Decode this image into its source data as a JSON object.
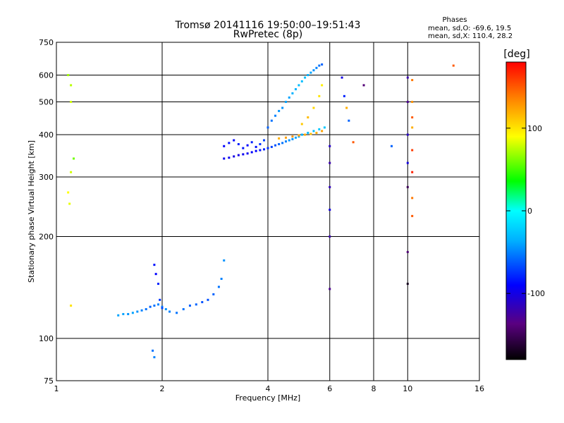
{
  "chart_data": {
    "type": "scatter",
    "title": "Tromsø 20141116 19:50:00–19:51:43",
    "subtitle": "RwPretec (8p)",
    "xlabel": "Frequency [MHz]",
    "ylabel": "Stationary phase Virtual Height [km]",
    "x_scale": "log",
    "y_scale": "log",
    "xlim": [
      1,
      16
    ],
    "ylim": [
      75,
      750
    ],
    "x_ticks": [
      1,
      2,
      4,
      6,
      8,
      10,
      16
    ],
    "y_ticks": [
      75,
      100,
      200,
      300,
      400,
      500,
      600,
      750
    ],
    "grid": true,
    "phase_info": {
      "title": "Phases",
      "line1": "mean, sd,O: -69.6, 19.5",
      "line2": "mean, sd,X: 110.4, 28.2"
    },
    "colorbar": {
      "label": "[deg]",
      "range": [
        -180,
        180
      ],
      "ticks": [
        100,
        0,
        -100
      ],
      "colormap": [
        "#000000",
        "#5a0080",
        "#0000ff",
        "#00b0ff",
        "#00ffff",
        "#00ff00",
        "#ffff00",
        "#ff8000",
        "#ff0000"
      ]
    },
    "series": [
      {
        "x": [
          3.0,
          3.1,
          3.2,
          3.3,
          3.4,
          3.5,
          3.6,
          3.7,
          3.8,
          3.9,
          4.0,
          4.1,
          4.2,
          4.3,
          4.4,
          4.5,
          4.6,
          4.7,
          4.8,
          4.9,
          5.0,
          5.2,
          5.4,
          5.6,
          5.8
        ],
        "y": [
          340,
          342,
          345,
          348,
          350,
          352,
          355,
          358,
          360,
          362,
          365,
          368,
          372,
          375,
          378,
          382,
          385,
          388,
          392,
          395,
          400,
          405,
          410,
          415,
          420
        ],
        "phase": [
          -95,
          -95,
          -100,
          -100,
          -95,
          -95,
          -90,
          -90,
          -85,
          -80,
          -75,
          -70,
          -65,
          -60,
          -55,
          -50,
          -45,
          -45,
          -40,
          -40,
          -35,
          -30,
          -30,
          -25,
          -25
        ]
      },
      {
        "x": [
          3.0,
          3.1,
          3.2,
          3.3,
          3.4,
          3.5,
          3.6,
          3.7,
          3.8,
          3.9
        ],
        "y": [
          370,
          378,
          385,
          375,
          365,
          372,
          380,
          368,
          375,
          385
        ],
        "phase": [
          -90,
          -85,
          -90,
          -80,
          -85,
          -90,
          -80,
          -85,
          -75,
          -70
        ]
      },
      {
        "x": [
          4.0,
          4.1,
          4.2,
          4.3,
          4.4,
          4.5,
          4.6,
          4.7,
          4.8,
          4.9,
          5.0,
          5.1,
          5.2,
          5.3,
          5.4,
          5.5,
          5.6,
          5.7
        ],
        "y": [
          420,
          440,
          455,
          470,
          480,
          500,
          515,
          530,
          545,
          560,
          575,
          590,
          600,
          610,
          620,
          630,
          640,
          645
        ],
        "phase": [
          -60,
          -55,
          -50,
          -45,
          -45,
          -40,
          -40,
          -35,
          -35,
          -30,
          -30,
          -30,
          -35,
          -40,
          -45,
          -50,
          -55,
          -60
        ]
      },
      {
        "x": [
          4.3,
          4.5,
          4.7,
          4.9,
          5.1,
          5.3,
          5.5,
          5.7
        ],
        "y": [
          390,
          392,
          395,
          398,
          400,
          402,
          405,
          410
        ],
        "phase": [
          120,
          125,
          130,
          125,
          120,
          115,
          120,
          125
        ]
      },
      {
        "x": [
          5.0,
          5.2,
          5.4,
          5.6,
          5.7
        ],
        "y": [
          430,
          450,
          480,
          520,
          560
        ],
        "phase": [
          110,
          115,
          105,
          100,
          95
        ]
      },
      {
        "x": [
          1.5,
          1.55,
          1.6,
          1.65,
          1.7,
          1.75,
          1.8,
          1.85,
          1.9,
          1.95,
          2.0,
          2.05,
          2.1,
          2.2,
          2.3,
          2.4,
          2.5,
          2.6,
          2.7,
          2.8,
          2.9,
          2.95,
          3.0
        ],
        "y": [
          117,
          118,
          118,
          119,
          120,
          121,
          122,
          124,
          125,
          126,
          124,
          122,
          120,
          119,
          122,
          125,
          126,
          128,
          130,
          135,
          142,
          150,
          170
        ],
        "phase": [
          -40,
          -40,
          -45,
          -40,
          -45,
          -50,
          -55,
          -60,
          -55,
          -50,
          -50,
          -45,
          -50,
          -55,
          -55,
          -60,
          -60,
          -65,
          -65,
          -60,
          -55,
          -50,
          -45
        ]
      },
      {
        "x": [
          1.9,
          1.92,
          1.95,
          1.97,
          2.0,
          1.88,
          1.9
        ],
        "y": [
          165,
          155,
          145,
          130,
          123,
          92,
          88
        ],
        "phase": [
          -85,
          -90,
          -80,
          -75,
          -70,
          -55,
          -50
        ]
      },
      {
        "x": [
          1.08,
          1.1,
          1.1,
          1.12,
          1.1,
          1.08,
          1.09,
          1.1
        ],
        "y": [
          600,
          560,
          500,
          340,
          310,
          270,
          250,
          125
        ],
        "phase": [
          70,
          75,
          80,
          60,
          80,
          90,
          85,
          100
        ]
      },
      {
        "x": [
          6.0,
          6.0,
          6.0,
          6.0,
          6.0,
          6.0
        ],
        "y": [
          370,
          330,
          280,
          240,
          200,
          140
        ],
        "phase": [
          -110,
          -120,
          -115,
          -100,
          -120,
          -130
        ]
      },
      {
        "x": [
          10.0,
          10.0,
          10.0,
          10.0,
          10.0,
          10.0,
          10.0
        ],
        "y": [
          590,
          500,
          400,
          330,
          280,
          180,
          145
        ],
        "phase": [
          -120,
          -130,
          -110,
          -100,
          -150,
          -140,
          -170
        ]
      },
      {
        "x": [
          10.3,
          10.3,
          10.3,
          10.3,
          10.3,
          10.3,
          10.3,
          10.3
        ],
        "y": [
          580,
          500,
          450,
          420,
          360,
          310,
          260,
          230
        ],
        "phase": [
          140,
          130,
          150,
          120,
          160,
          170,
          140,
          150
        ]
      },
      {
        "x": [
          6.5,
          6.6,
          6.7,
          6.8,
          7.0,
          7.5,
          9.0,
          13.5
        ],
        "y": [
          590,
          520,
          480,
          440,
          380,
          560,
          370,
          640
        ],
        "phase": [
          -100,
          -80,
          120,
          -60,
          150,
          -140,
          -60,
          150
        ]
      }
    ]
  }
}
